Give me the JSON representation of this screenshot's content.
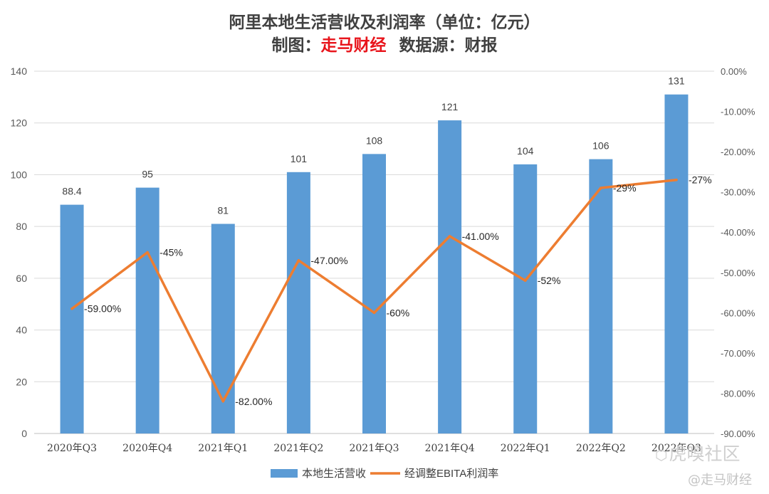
{
  "chart_data": {
    "type": "bar+line",
    "title": "阿里本地生活营收及利润率（单位：亿元）",
    "subtitle": {
      "prefix": "制图：",
      "maker": "走马财经",
      "source": "数据源：财报"
    },
    "categories": [
      "2020年Q3",
      "2020年Q4",
      "2021年Q1",
      "2021年Q2",
      "2021年Q3",
      "2021年Q4",
      "2022年Q1",
      "2022年Q2",
      "2022年Q3"
    ],
    "series": [
      {
        "name": "本地生活营收",
        "type": "bar",
        "axis": "left",
        "color": "#5b9bd5",
        "values": [
          88.4,
          95,
          81,
          101,
          108,
          121,
          104,
          106,
          131
        ],
        "labels": [
          "88.4",
          "95",
          "81",
          "101",
          "108",
          "121",
          "104",
          "106",
          "131"
        ]
      },
      {
        "name": "经调整EBITA利润率",
        "type": "line",
        "axis": "right",
        "color": "#ed7d31",
        "values": [
          -59,
          -45,
          -82,
          -47,
          -60,
          -41,
          -52,
          -29,
          -27
        ],
        "labels": [
          "-59.00%",
          "-45%",
          "-82.00%",
          "-47.00%",
          "-60%",
          "-41.00%",
          "-52%",
          "-29%",
          "-27%"
        ]
      }
    ],
    "left_axis": {
      "ylim": [
        0,
        140
      ],
      "ticks": [
        "0",
        "20",
        "40",
        "60",
        "80",
        "100",
        "120",
        "140"
      ]
    },
    "right_axis": {
      "ylim": [
        -90,
        0
      ],
      "ticks": [
        "0.00%",
        "-10.00%",
        "-20.00%",
        "-30.00%",
        "-40.00%",
        "-50.00%",
        "-60.00%",
        "-70.00%",
        "-80.00%",
        "-90.00%"
      ]
    },
    "grid": true,
    "legend_position": "bottom"
  },
  "watermarks": {
    "site": "虎嗅社区",
    "account": "@走马财经"
  }
}
